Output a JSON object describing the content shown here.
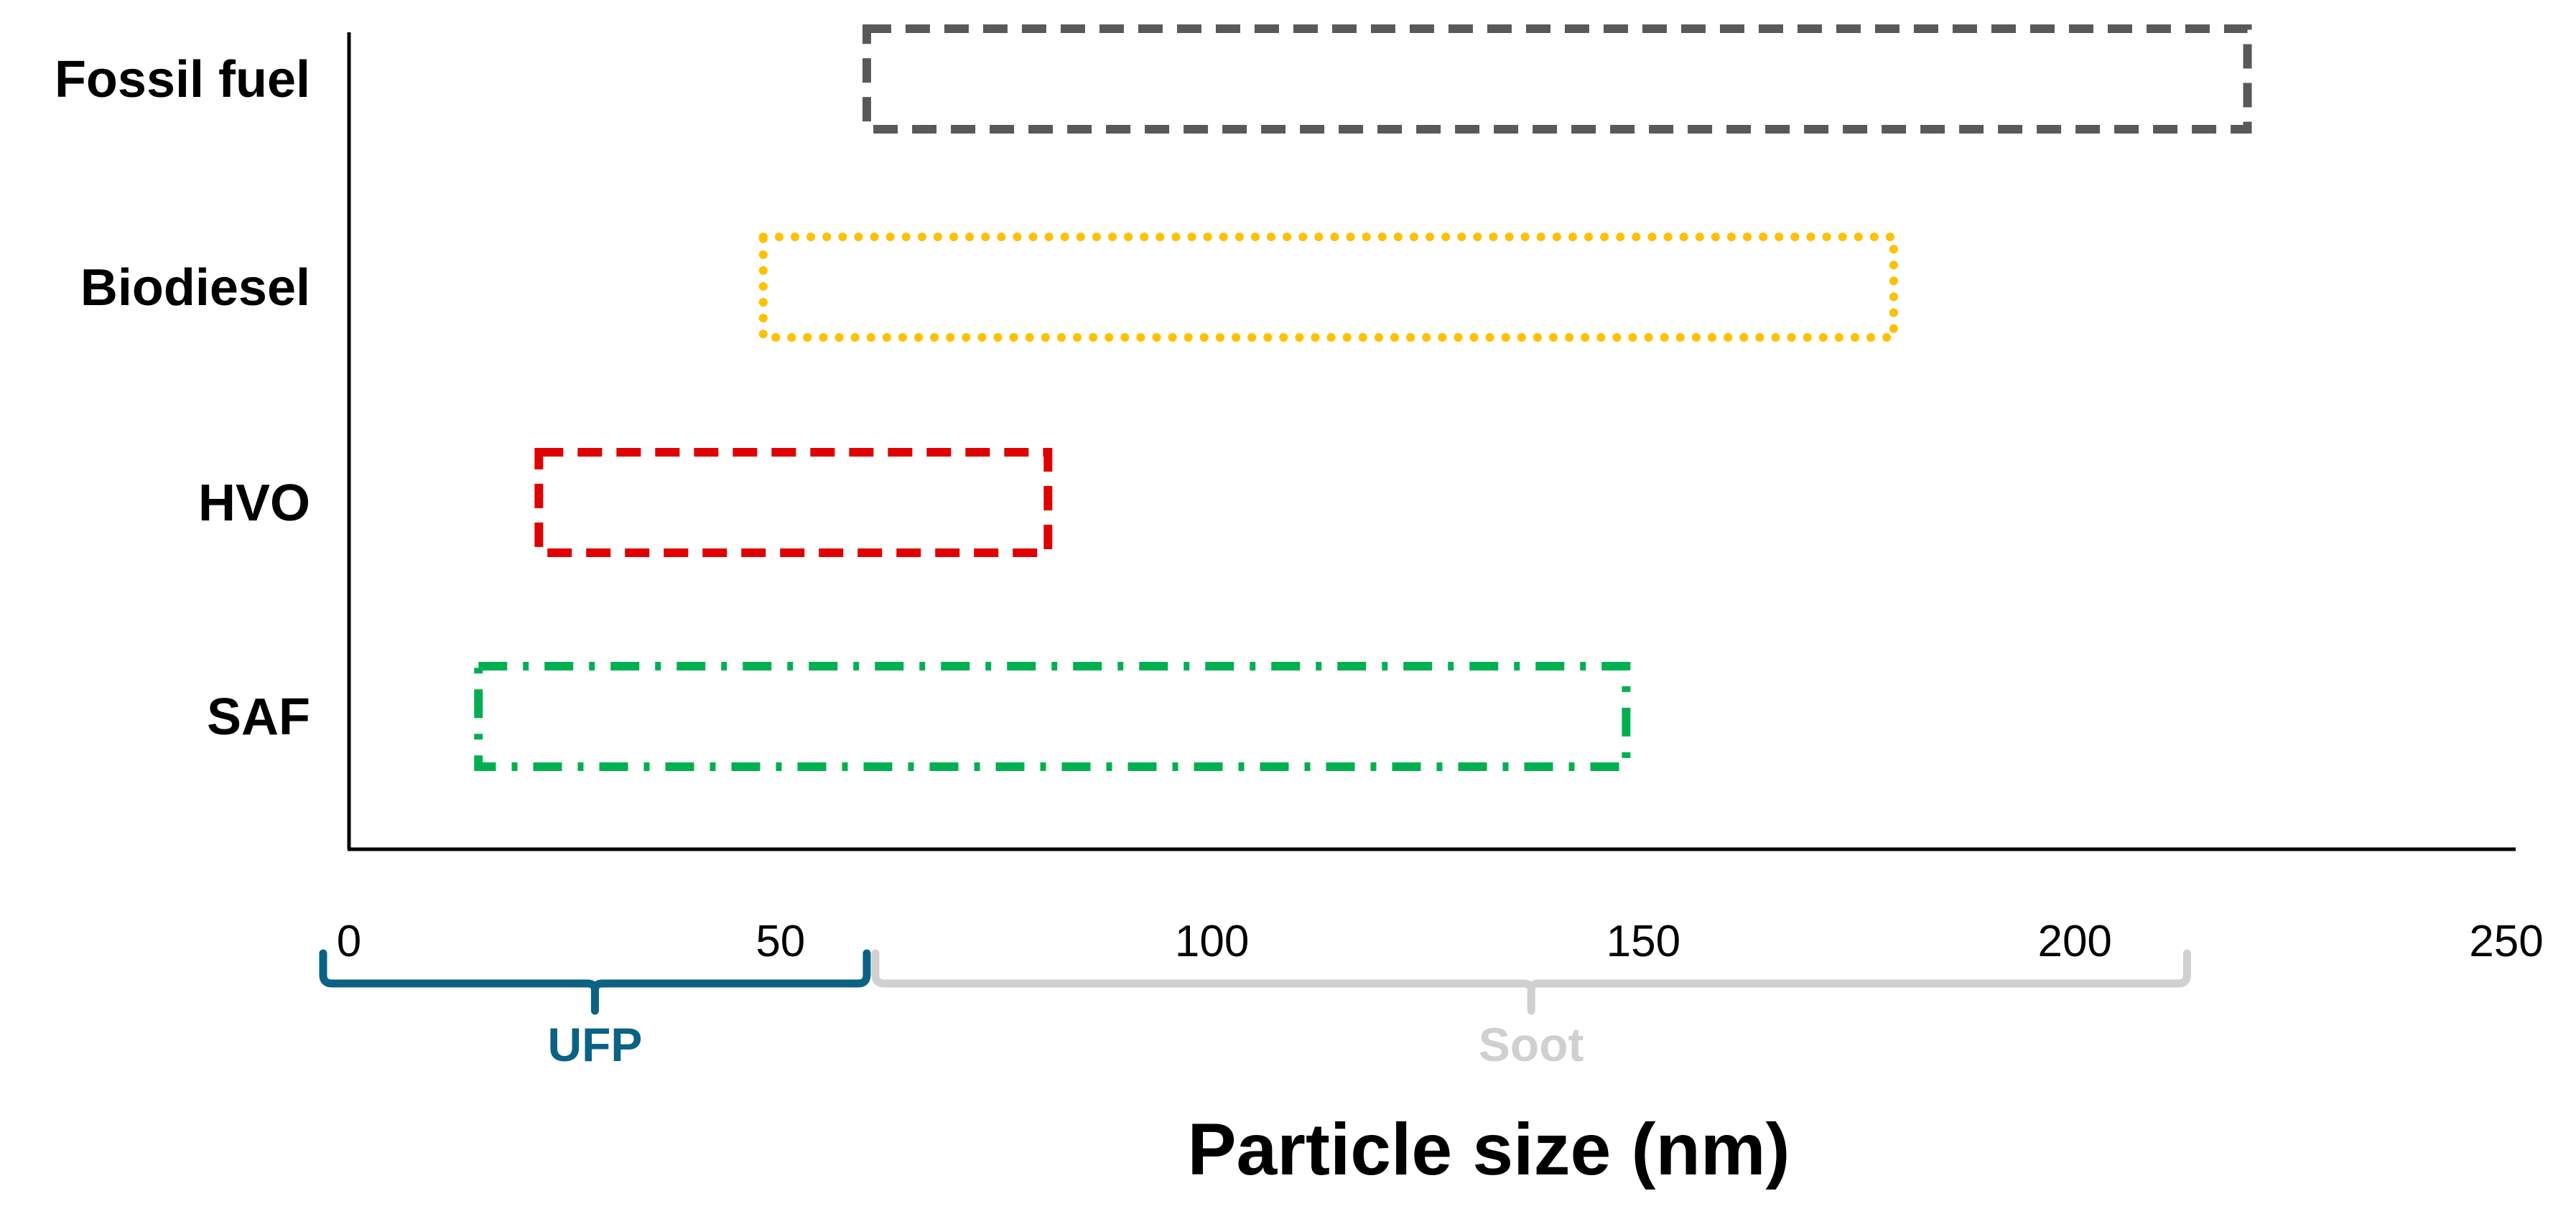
{
  "chart_data": {
    "type": "range-bar",
    "xlabel": "Particle size (nm)",
    "xlim": [
      0,
      250
    ],
    "xticks": [
      "0",
      "50",
      "100",
      "150",
      "200",
      "250"
    ],
    "grid": false,
    "series": [
      {
        "name": "Fossil fuel",
        "min": 60,
        "max": 220,
        "color": "#595959",
        "style": "dashed"
      },
      {
        "name": "Biodiesel",
        "min": 48,
        "max": 179,
        "color": "#FFC000",
        "style": "dotted"
      },
      {
        "name": "HVO",
        "min": 22,
        "max": 81,
        "color": "#E00000",
        "style": "dashed"
      },
      {
        "name": "SAF",
        "min": 15,
        "max": 148,
        "color": "#00B050",
        "style": "dash-dot"
      }
    ],
    "annotations": [
      {
        "label": "UFP",
        "min": -3,
        "max": 60,
        "color": "#0A6284"
      },
      {
        "label": "Soot",
        "min": 61,
        "max": 213,
        "color": "#D0D0D0"
      }
    ]
  }
}
